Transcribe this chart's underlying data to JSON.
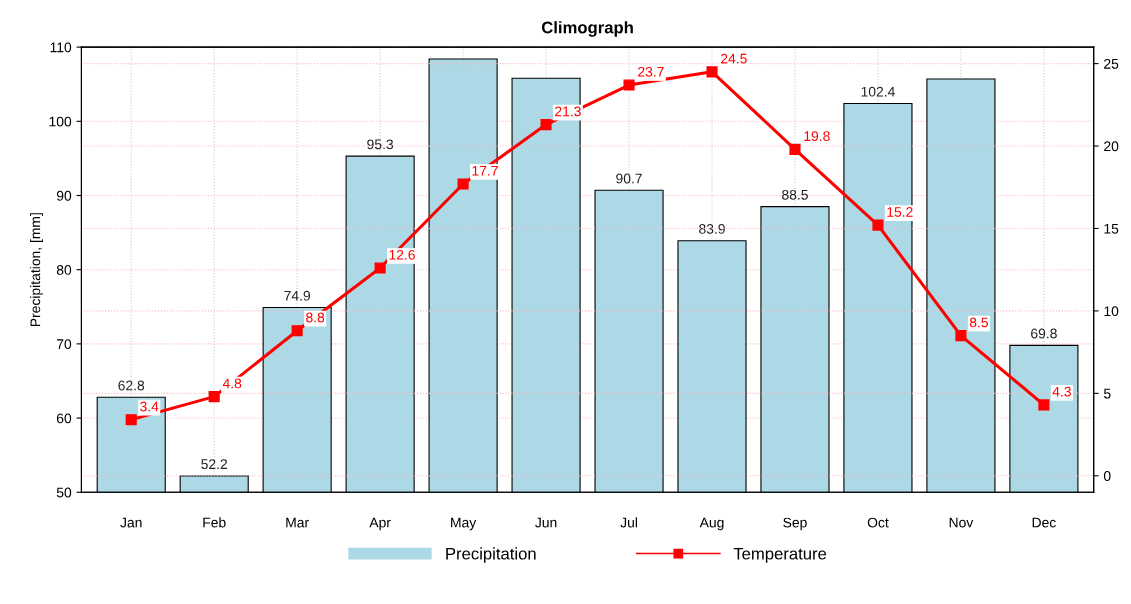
{
  "chart_data": {
    "type": "bar",
    "title": "Climograph",
    "ylabel": "Precipitation, [mm]",
    "categories": [
      "Jan",
      "Feb",
      "Mar",
      "Apr",
      "May",
      "Jun",
      "Jul",
      "Aug",
      "Sep",
      "Oct",
      "Nov",
      "Dec"
    ],
    "series": [
      {
        "name": "Precipitation",
        "color": "#add8e6",
        "values": [
          62.8,
          52.2,
          74.9,
          95.3,
          108.4,
          105.8,
          90.7,
          83.9,
          88.5,
          102.4,
          105.7,
          69.8
        ],
        "value_labels": [
          "62.8",
          "52.2",
          "74.9",
          "95.3",
          null,
          null,
          "90.7",
          "83.9",
          "88.5",
          "102.4",
          null,
          "69.8"
        ]
      },
      {
        "name": "Temperature",
        "type": "line",
        "axis": "y2",
        "color": "#ff0000",
        "marker": "square",
        "line_style": "solid",
        "values": [
          3.4,
          4.8,
          8.8,
          12.6,
          17.7,
          21.3,
          23.7,
          24.5,
          19.8,
          15.2,
          8.5,
          4.3
        ],
        "value_labels": [
          "3.4",
          "4.8",
          "8.8",
          "12.6",
          "17.7",
          "21.3",
          "23.7",
          "24.5",
          "19.8",
          "15.2",
          "8.5",
          "4.3"
        ]
      }
    ],
    "ylim": [
      50,
      110
    ],
    "yticks": [
      50,
      60,
      70,
      80,
      90,
      100,
      110
    ],
    "y2lim": [
      -1,
      26
    ],
    "y2ticks": [
      0,
      5,
      10,
      15,
      20,
      25
    ],
    "grid": true,
    "legend": "bottom"
  }
}
